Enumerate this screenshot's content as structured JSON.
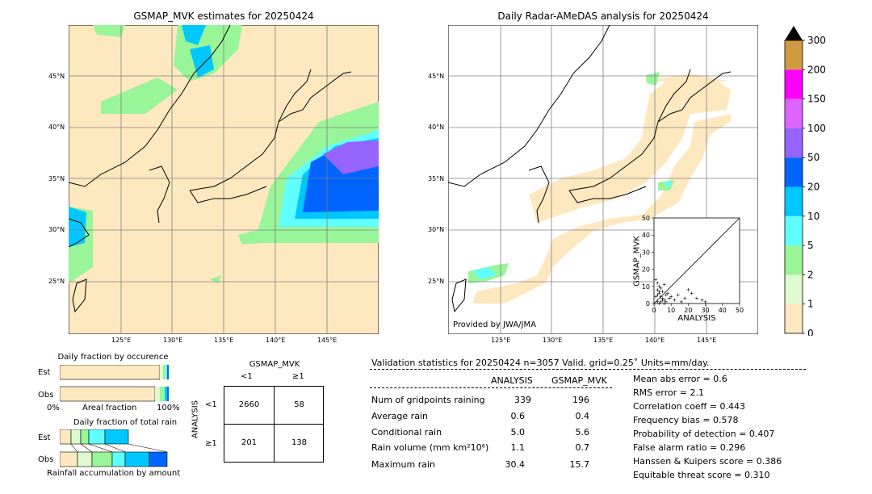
{
  "left_map": {
    "title": "GSMAP_MVK estimates for 20250424",
    "lat_labels": [
      "45°N",
      "40°N",
      "35°N",
      "30°N",
      "25°N"
    ],
    "lon_labels": [
      "125°E",
      "130°E",
      "135°E",
      "140°E",
      "145°E"
    ]
  },
  "right_map": {
    "title": "Daily Radar-AMeDAS analysis for 20250424",
    "credit": "Provided by JWA/JMA",
    "lat_labels": [
      "45°N",
      "40°N",
      "35°N",
      "30°N",
      "25°N"
    ],
    "lon_labels": [
      "125°E",
      "130°E",
      "135°E",
      "140°E",
      "145°E"
    ]
  },
  "colorbar": {
    "labels": [
      "0",
      "1",
      "2",
      "5",
      "10",
      "20",
      "50",
      "100",
      "150",
      "200",
      "300"
    ],
    "colors": [
      "#fde8c0",
      "#e0fad0",
      "#98f598",
      "#60ffff",
      "#00c8ff",
      "#0064ff",
      "#9664ff",
      "#dc64ff",
      "#ff00ff",
      "#d09a40"
    ],
    "extend_color": "#000000"
  },
  "scatter": {
    "xlabel": "ANALYSIS",
    "ylabel": "GSMAP_MVK",
    "ticks": [
      "0",
      "10",
      "20",
      "30",
      "40",
      "50"
    ]
  },
  "occurrence": {
    "title": "Daily fraction by occurence",
    "row_labels": [
      "Est",
      "Obs"
    ],
    "axis_left": "0%",
    "axis_mid": "Areal fraction",
    "axis_right": "100%"
  },
  "total_rain": {
    "title": "Daily fraction of total rain",
    "row_labels": [
      "Est",
      "Obs"
    ],
    "axis_caption": "Rainfall accumulation by amount"
  },
  "contingency": {
    "title": "GSMAP_MVK",
    "col_labels": [
      "<1",
      "≥1"
    ],
    "row_labels": [
      "<1",
      "≥1"
    ],
    "side_label": "ANALYSIS",
    "cells": [
      [
        "2660",
        "58"
      ],
      [
        "201",
        "138"
      ]
    ]
  },
  "validation": {
    "header": "Validation statistics for 20250424  n=3057 Valid. grid=0.25˚ Units=mm/day.",
    "col_analysis": "ANALYSIS",
    "col_gsmap": "GSMAP_MVK",
    "rows": [
      {
        "label": "Num of gridpoints raining",
        "analysis": "339",
        "gsmap": "196"
      },
      {
        "label": "Average rain",
        "analysis": "0.6",
        "gsmap": "0.4"
      },
      {
        "label": "Conditional rain",
        "analysis": "5.0",
        "gsmap": "5.6"
      },
      {
        "label": "Rain volume (mm km²10⁶)",
        "analysis": "1.1",
        "gsmap": "0.7"
      },
      {
        "label": "Maximum rain",
        "analysis": "30.4",
        "gsmap": "15.7"
      }
    ],
    "scores": [
      "Mean abs error =    0.6",
      "RMS error =    2.1",
      "Correlation coeff =  0.443",
      "Frequency bias =  0.578",
      "Probability of detection =  0.407",
      "False alarm ratio =  0.296",
      "Hanssen & Kuipers score =  0.386",
      "Equitable threat score =  0.310"
    ]
  },
  "chart_data": {
    "type": "scatter",
    "xlabel": "ANALYSIS",
    "ylabel": "GSMAP_MVK",
    "xlim": [
      0,
      50
    ],
    "ylim": [
      0,
      50
    ],
    "x": [
      1,
      2,
      2,
      3,
      3,
      4,
      4,
      5,
      5,
      6,
      6,
      7,
      8,
      9,
      10,
      12,
      14,
      16,
      18,
      20,
      22,
      25,
      28,
      30,
      2,
      3,
      4,
      5,
      6,
      7,
      1,
      2,
      3
    ],
    "y": [
      14,
      12,
      8,
      10,
      6,
      9,
      4,
      7,
      3,
      11,
      2,
      5,
      6,
      3,
      4,
      2,
      5,
      1,
      3,
      8,
      6,
      3,
      2,
      1,
      1,
      0,
      1,
      2,
      0,
      1,
      4,
      5,
      7
    ]
  }
}
